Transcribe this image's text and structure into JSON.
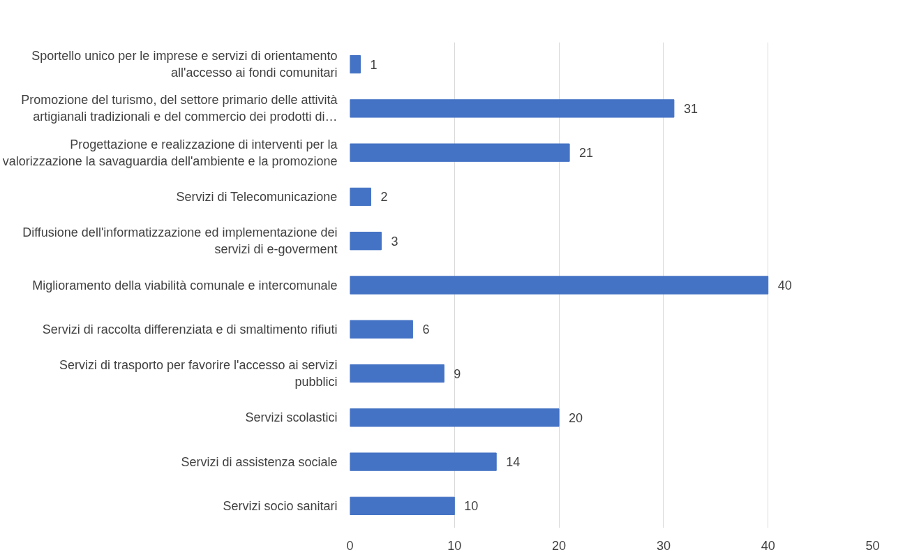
{
  "chart_data": {
    "type": "bar",
    "orientation": "horizontal",
    "categories": [
      "Sportello unico per le imprese e servizi di orientamento all'accesso ai fondi comunitari",
      "Promozione del turismo, del settore primario delle attività artigianali tradizionali e del commercio dei prodotti di…",
      "Progettazione e realizzazione di interventi per la valorizzazione la savaguardia dell'ambiente e la promozione",
      "Servizi di Telecomunicazione",
      "Diffusione dell'informatizzazione ed implementazione dei servizi di e-goverment",
      "Miglioramento della viabilità comunale e intercomunale",
      "Servizi di raccolta differenziata e di smaltimento rifiuti",
      "Servizi di trasporto per favorire l'accesso ai servizi pubblici",
      "Servizi scolastici",
      "Servizi di assistenza sociale",
      "Servizi socio sanitari"
    ],
    "values": [
      1,
      31,
      21,
      2,
      3,
      40,
      6,
      9,
      20,
      14,
      10
    ],
    "color": "#4472c4",
    "xlim": [
      0,
      50
    ],
    "xticks": [
      0,
      10,
      20,
      30,
      40,
      50
    ],
    "grid": "x",
    "data_labels": true
  }
}
